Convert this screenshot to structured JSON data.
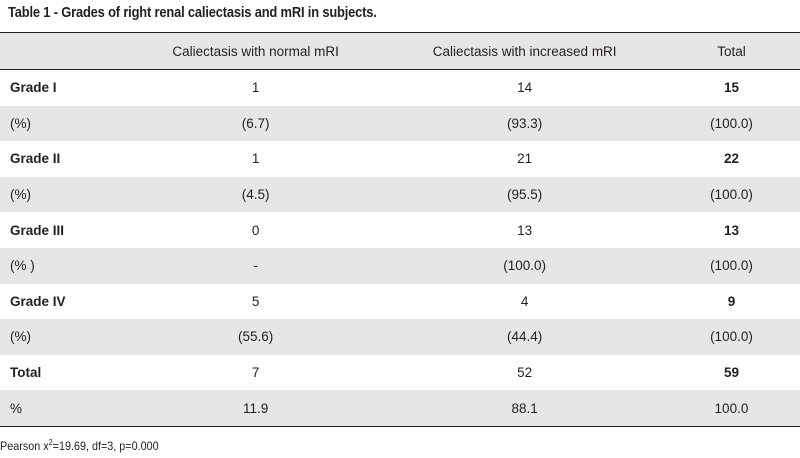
{
  "caption": "Table 1 - Grades of right renal caliectasis and mRI in subjects.",
  "headers": [
    "",
    "Caliectasis with normal mRI",
    "Caliectasis with increased mRI",
    "Total"
  ],
  "rows": [
    {
      "label": "Grade I",
      "c1": "1",
      "c2": "14",
      "c3": "15"
    },
    {
      "label": "(%)",
      "c1": "(6.7)",
      "c2": "(93.3)",
      "c3": "(100.0)"
    },
    {
      "label": "Grade II",
      "c1": "1",
      "c2": "21",
      "c3": "22"
    },
    {
      "label": "(%)",
      "c1": "(4.5)",
      "c2": "(95.5)",
      "c3": "(100.0)"
    },
    {
      "label": "Grade III",
      "c1": "0",
      "c2": "13",
      "c3": "13"
    },
    {
      "label": "(% )",
      "c1": "-",
      "c2": "(100.0)",
      "c3": "(100.0)"
    },
    {
      "label": "Grade IV",
      "c1": "5",
      "c2": "4",
      "c3": "9"
    },
    {
      "label": "(%)",
      "c1": "(55.6)",
      "c2": "(44.4)",
      "c3": "(100.0)"
    },
    {
      "label": "Total",
      "c1": "7",
      "c2": "52",
      "c3": "59"
    },
    {
      "label": "%",
      "c1": "11.9",
      "c2": "88.1",
      "c3": "100.0"
    }
  ],
  "footnote": {
    "prefix": "Pearson x",
    "superscript": "2",
    "suffix": "=19.69, df=3, p=0.000"
  }
}
